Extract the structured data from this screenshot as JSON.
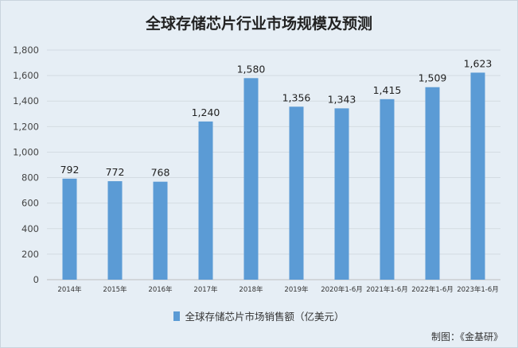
{
  "chart_data": {
    "type": "bar",
    "title": "全球存储芯片行业市场规模及预测",
    "categories": [
      "2014年",
      "2015年",
      "2016年",
      "2017年",
      "2018年",
      "2019年",
      "2020年1-6月",
      "2021年1-6月",
      "2022年1-6月",
      "2023年1-6月"
    ],
    "series": [
      {
        "name": "全球存储芯片市场销售额（亿美元）",
        "values": [
          792,
          772,
          768,
          1240,
          1580,
          1356,
          1343,
          1415,
          1509,
          1623
        ],
        "labels": [
          "792",
          "772",
          "768",
          "1,240",
          "1,580",
          "1,356",
          "1,343",
          "1,415",
          "1,509",
          "1,623"
        ]
      }
    ],
    "yticks": [
      "0",
      "200",
      "400",
      "600",
      "800",
      "1,000",
      "1,200",
      "1,400",
      "1,600",
      "1,800"
    ],
    "ylim": [
      0,
      1800
    ],
    "grid": true,
    "legend_position": "bottom",
    "bar_color": "#5b9bd5"
  },
  "source": "制图：《金基研》"
}
